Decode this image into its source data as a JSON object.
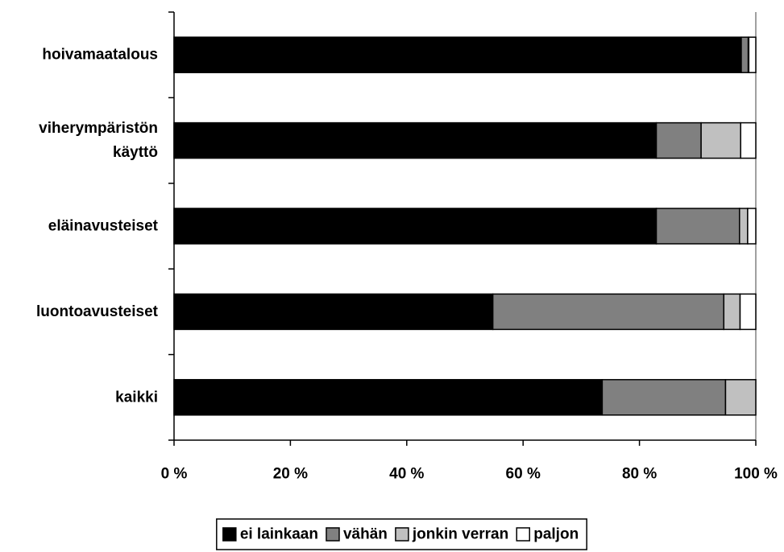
{
  "chart_data": {
    "type": "bar",
    "orientation": "horizontal",
    "stacked": "percent",
    "categories": [
      [
        "hoivamaatalous"
      ],
      [
        "viherympäristön",
        "käyttö"
      ],
      [
        "eläinavusteiset"
      ],
      [
        "luontoavusteiset"
      ],
      [
        "kaikki"
      ]
    ],
    "series": [
      {
        "name": "ei lainkaan",
        "color": "#000000",
        "values": [
          97.5,
          82.9,
          82.9,
          54.8,
          73.6
        ]
      },
      {
        "name": "vähän",
        "color": "#808080",
        "values": [
          1.2,
          7.7,
          14.3,
          39.7,
          21.2
        ]
      },
      {
        "name": "jonkin verran",
        "color": "#c0c0c0",
        "values": [
          0.1,
          6.8,
          1.4,
          2.8,
          5.2
        ]
      },
      {
        "name": "paljon",
        "color": "#ffffff",
        "values": [
          1.2,
          2.6,
          1.4,
          2.7,
          0
        ]
      }
    ],
    "xlim": [
      0,
      100
    ],
    "xticks": [
      "0 %",
      "20 %",
      "40 %",
      "60 %",
      "80 %",
      "100 %"
    ],
    "grid": false,
    "legend_position": "bottom"
  }
}
